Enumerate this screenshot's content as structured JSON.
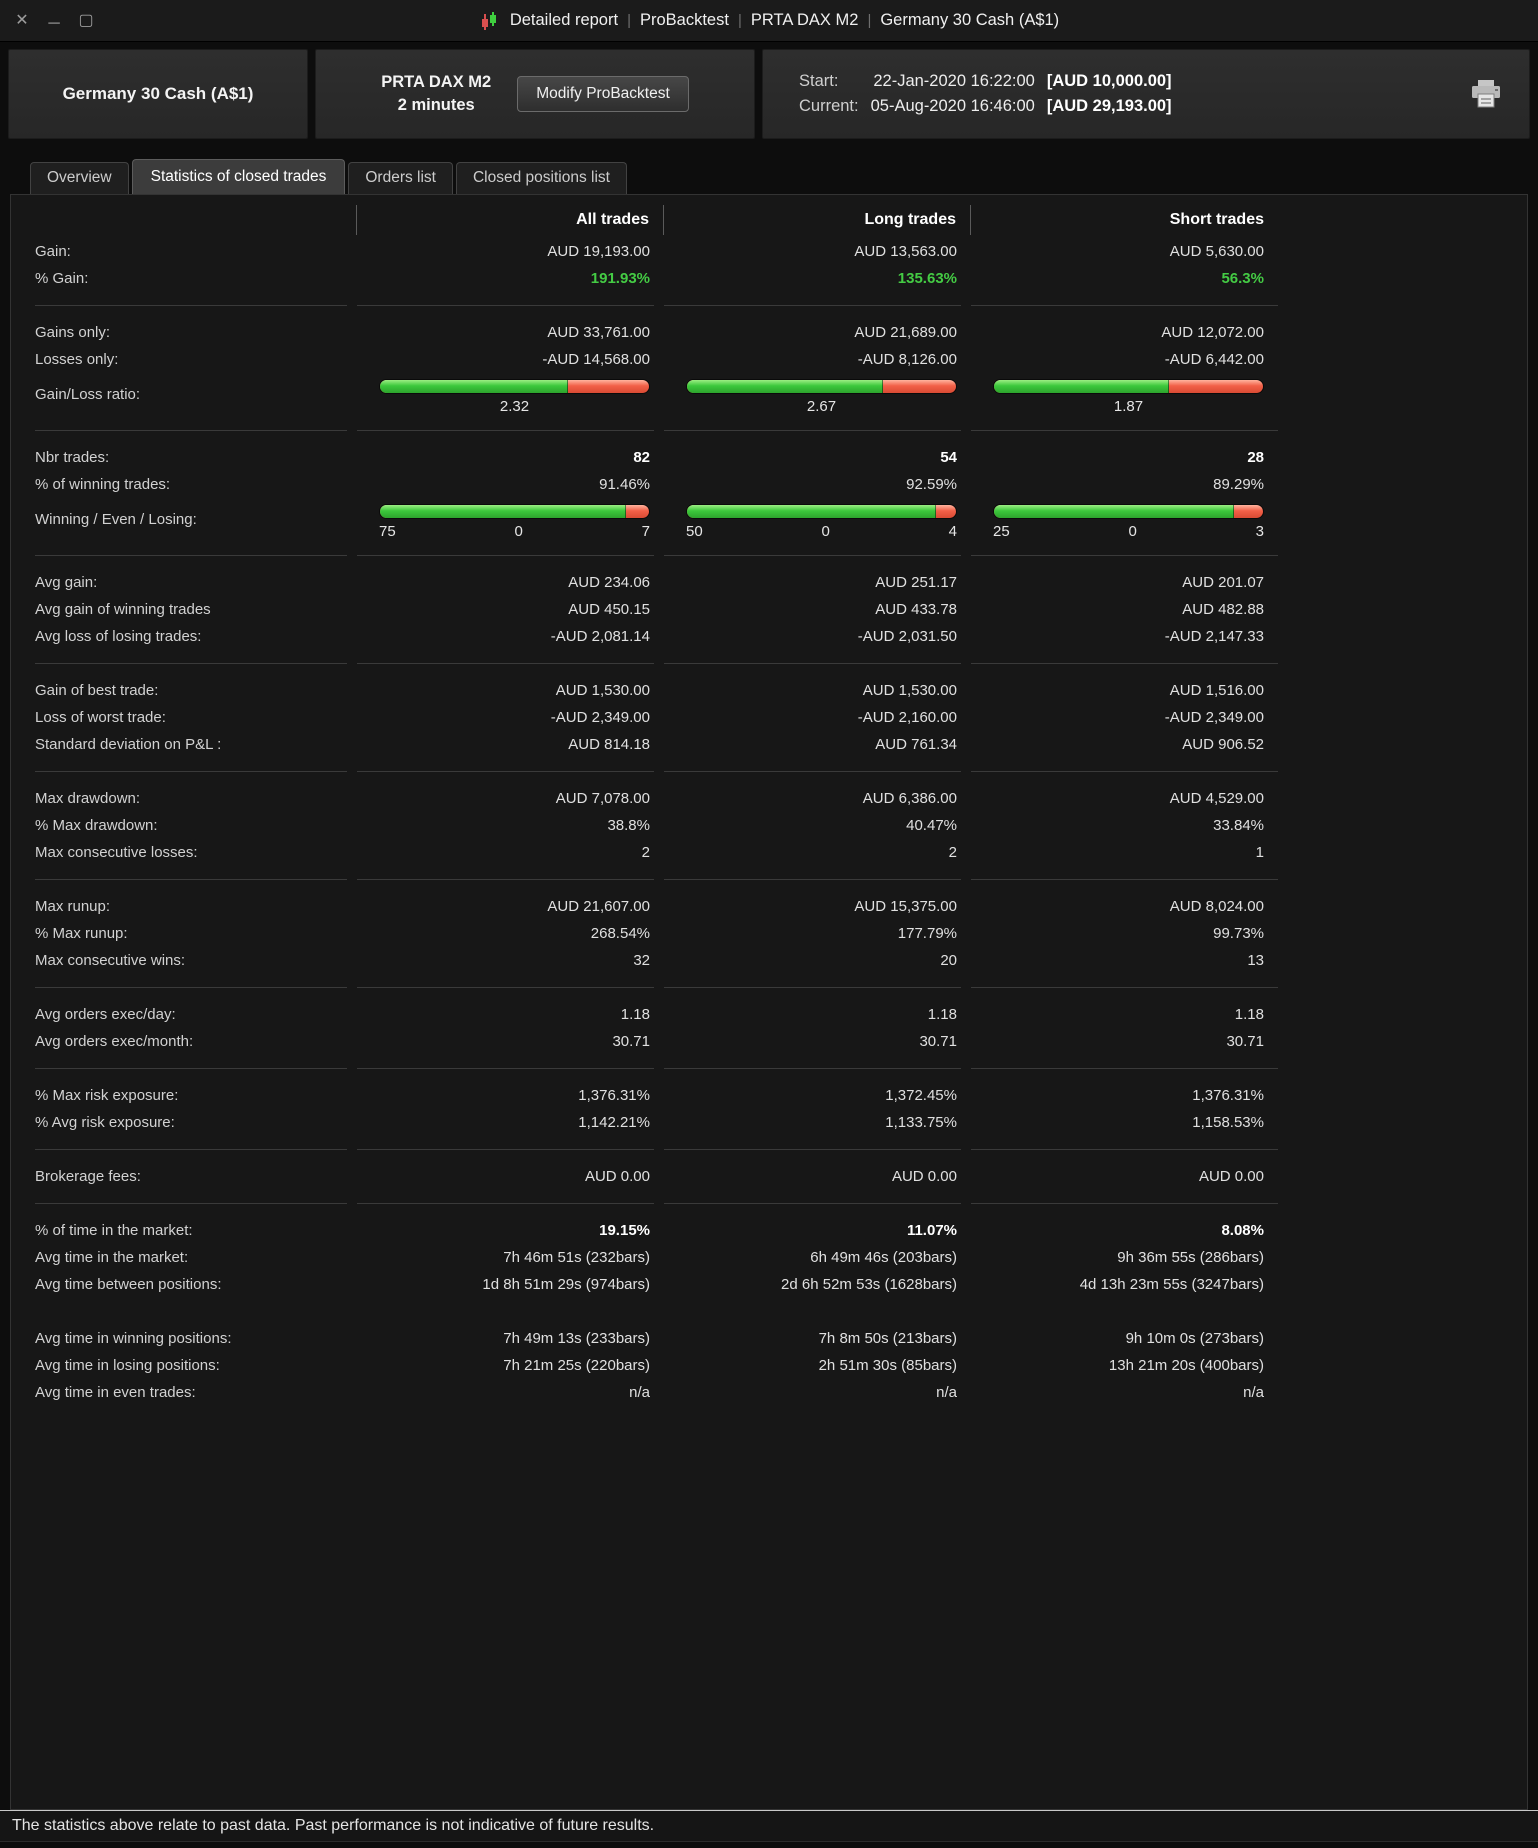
{
  "titlebar": {
    "parts": [
      "Detailed report",
      "ProBacktest",
      "PRTA DAX M2",
      "Germany 30 Cash (A$1)"
    ],
    "close_icon": "✕",
    "minimize_icon": "─",
    "maximize_icon": "▢"
  },
  "header": {
    "instrument": "Germany 30 Cash (A$1)",
    "strategy_name": "PRTA DAX M2",
    "timeframe": "2 minutes",
    "modify_button": "Modify ProBacktest",
    "start_label": "Start:",
    "start_datetime": "22-Jan-2020 16:22:00",
    "start_amount": "[AUD 10,000.00]",
    "current_label": "Current:",
    "current_datetime": "05-Aug-2020 16:46:00",
    "current_amount": "[AUD 29,193.00]"
  },
  "tabs": [
    {
      "label": "Overview"
    },
    {
      "label": "Statistics of closed trades"
    },
    {
      "label": "Orders list"
    },
    {
      "label": "Closed positions list"
    }
  ],
  "colors": {
    "positive_green": "#44cb44",
    "bar_green": "#3cc83c",
    "bar_red": "#f26048"
  },
  "table": {
    "columns": [
      "All trades",
      "Long trades",
      "Short trades"
    ],
    "groups": [
      {
        "rows": [
          {
            "label": "Gain:",
            "values": [
              "AUD 19,193.00",
              "AUD 13,563.00",
              "AUD 5,630.00"
            ]
          },
          {
            "label": "% Gain:",
            "values": [
              "191.93%",
              "135.63%",
              "56.3%"
            ],
            "cls": "green"
          }
        ]
      },
      {
        "rows": [
          {
            "label": "Gains only:",
            "values": [
              "AUD 33,761.00",
              "AUD 21,689.00",
              "AUD 12,072.00"
            ]
          },
          {
            "label": "Losses only:",
            "values": [
              "-AUD 14,568.00",
              "-AUD 8,126.00",
              "-AUD 6,442.00"
            ]
          },
          {
            "label": "Gain/Loss ratio:",
            "bars": [
              {
                "green": 0.699,
                "labels": [
                  "2.32"
                ]
              },
              {
                "green": 0.727,
                "labels": [
                  "2.67"
                ]
              },
              {
                "green": 0.652,
                "labels": [
                  "1.87"
                ]
              }
            ]
          }
        ]
      },
      {
        "rows": [
          {
            "label": "Nbr trades:",
            "values": [
              "82",
              "54",
              "28"
            ],
            "cls": "bold"
          },
          {
            "label": "% of winning trades:",
            "values": [
              "91.46%",
              "92.59%",
              "89.29%"
            ]
          },
          {
            "label": "Winning / Even / Losing:",
            "bars": [
              {
                "green": 0.915,
                "labels": [
                  "75",
                  "0",
                  "7"
                ]
              },
              {
                "green": 0.926,
                "labels": [
                  "50",
                  "0",
                  "4"
                ]
              },
              {
                "green": 0.893,
                "labels": [
                  "25",
                  "0",
                  "3"
                ]
              }
            ]
          }
        ]
      },
      {
        "rows": [
          {
            "label": "Avg gain:",
            "values": [
              "AUD 234.06",
              "AUD 251.17",
              "AUD 201.07"
            ]
          },
          {
            "label": "Avg gain of winning trades",
            "values": [
              "AUD 450.15",
              "AUD 433.78",
              "AUD 482.88"
            ]
          },
          {
            "label": "Avg loss of losing trades:",
            "values": [
              "-AUD 2,081.14",
              "-AUD 2,031.50",
              "-AUD 2,147.33"
            ]
          }
        ]
      },
      {
        "rows": [
          {
            "label": "Gain of best trade:",
            "values": [
              "AUD 1,530.00",
              "AUD 1,530.00",
              "AUD 1,516.00"
            ]
          },
          {
            "label": "Loss of worst trade:",
            "values": [
              "-AUD 2,349.00",
              "-AUD 2,160.00",
              "-AUD 2,349.00"
            ]
          },
          {
            "label": "Standard deviation on P&L :",
            "values": [
              "AUD 814.18",
              "AUD 761.34",
              "AUD 906.52"
            ]
          }
        ]
      },
      {
        "rows": [
          {
            "label": "Max drawdown:",
            "values": [
              "AUD 7,078.00",
              "AUD 6,386.00",
              "AUD 4,529.00"
            ]
          },
          {
            "label": "% Max drawdown:",
            "values": [
              "38.8%",
              "40.47%",
              "33.84%"
            ]
          },
          {
            "label": "Max consecutive losses:",
            "values": [
              "2",
              "2",
              "1"
            ]
          }
        ]
      },
      {
        "rows": [
          {
            "label": "Max runup:",
            "values": [
              "AUD 21,607.00",
              "AUD 15,375.00",
              "AUD 8,024.00"
            ]
          },
          {
            "label": "% Max runup:",
            "values": [
              "268.54%",
              "177.79%",
              "99.73%"
            ]
          },
          {
            "label": "Max consecutive wins:",
            "values": [
              "32",
              "20",
              "13"
            ]
          }
        ]
      },
      {
        "rows": [
          {
            "label": "Avg orders exec/day:",
            "values": [
              "1.18",
              "1.18",
              "1.18"
            ]
          },
          {
            "label": "Avg orders exec/month:",
            "values": [
              "30.71",
              "30.71",
              "30.71"
            ]
          }
        ]
      },
      {
        "rows": [
          {
            "label": "% Max risk exposure:",
            "values": [
              "1,376.31%",
              "1,372.45%",
              "1,376.31%"
            ]
          },
          {
            "label": "% Avg risk exposure:",
            "values": [
              "1,142.21%",
              "1,133.75%",
              "1,158.53%"
            ]
          }
        ]
      },
      {
        "rows": [
          {
            "label": "Brokerage fees:",
            "values": [
              "AUD 0.00",
              "AUD 0.00",
              "AUD 0.00"
            ]
          }
        ]
      },
      {
        "rows": [
          {
            "label": "% of time in the market:",
            "values": [
              "19.15%",
              "11.07%",
              "8.08%"
            ],
            "cls": "bold"
          },
          {
            "label": "Avg time in the market:",
            "values": [
              "7h 46m 51s (232bars)",
              "6h 49m 46s (203bars)",
              "9h 36m 55s (286bars)"
            ]
          },
          {
            "label": "Avg time between positions:",
            "values": [
              "1d 8h 51m 29s (974bars)",
              "2d 6h 52m 53s (1628bars)",
              "4d 13h 23m 55s (3247bars)"
            ]
          }
        ]
      },
      {
        "separator": false,
        "rows": [
          {
            "label": "Avg time in winning positions:",
            "values": [
              "7h 49m 13s (233bars)",
              "7h 8m 50s (213bars)",
              "9h 10m 0s (273bars)"
            ]
          },
          {
            "label": "Avg time in losing positions:",
            "values": [
              "7h 21m 25s (220bars)",
              "2h 51m 30s (85bars)",
              "13h 21m 20s (400bars)"
            ]
          },
          {
            "label": "Avg time in even trades:",
            "values": [
              "n/a",
              "n/a",
              "n/a"
            ]
          }
        ]
      }
    ]
  },
  "footer": {
    "text": "The statistics above relate to past data. Past performance is not indicative of future results."
  }
}
